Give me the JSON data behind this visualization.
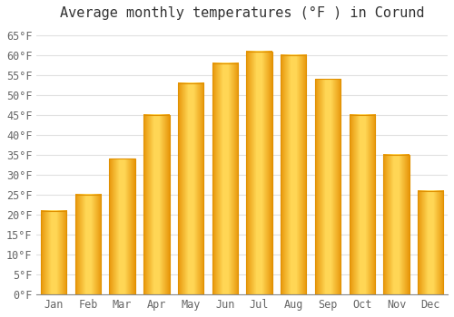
{
  "title": "Average monthly temperatures (°F ) in Corund",
  "months": [
    "Jan",
    "Feb",
    "Mar",
    "Apr",
    "May",
    "Jun",
    "Jul",
    "Aug",
    "Sep",
    "Oct",
    "Nov",
    "Dec"
  ],
  "values": [
    21,
    25,
    34,
    45,
    53,
    58,
    61,
    60,
    54,
    45,
    35,
    26
  ],
  "bar_color_left": "#F5A800",
  "bar_color_center": "#FFD050",
  "bar_color_right": "#F5A800",
  "bar_edge_color": "#E09000",
  "background_color": "#ffffff",
  "grid_color": "#e0e0e0",
  "ylim": [
    0,
    67
  ],
  "yticks": [
    0,
    5,
    10,
    15,
    20,
    25,
    30,
    35,
    40,
    45,
    50,
    55,
    60,
    65
  ],
  "title_fontsize": 11,
  "tick_fontsize": 8.5,
  "font_family": "monospace",
  "bar_width": 0.75
}
